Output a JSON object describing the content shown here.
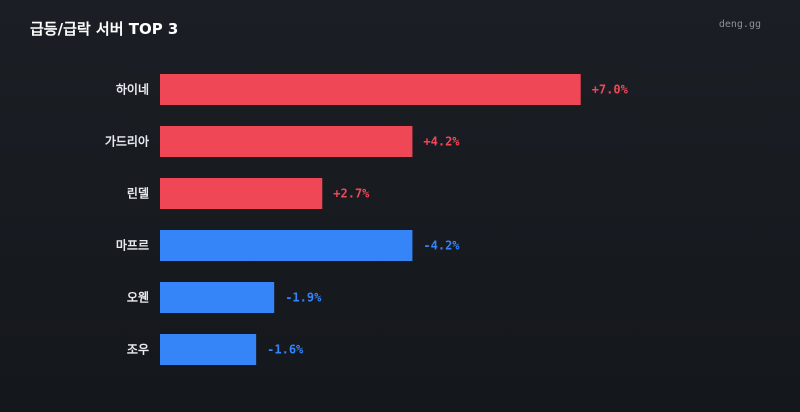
{
  "title": "급등/급락 서버 TOP 3",
  "brand": "deng.gg",
  "colors": {
    "up": "#f04756",
    "down": "#3584f8",
    "label": "#e8eaee"
  },
  "chart_data": {
    "type": "bar",
    "orientation": "horizontal",
    "title": "급등/급락 서버 TOP 3",
    "categories": [
      "하이네",
      "가드리아",
      "린델",
      "마프르",
      "오웬",
      "조우"
    ],
    "values": [
      7.0,
      4.2,
      2.7,
      -4.2,
      -1.9,
      -1.6
    ],
    "value_labels": [
      "+7.0%",
      "+4.2%",
      "+2.7%",
      "-4.2%",
      "-1.9%",
      "-1.6%"
    ],
    "xlabel": "",
    "ylabel": "",
    "grid": false,
    "legend": "none"
  }
}
